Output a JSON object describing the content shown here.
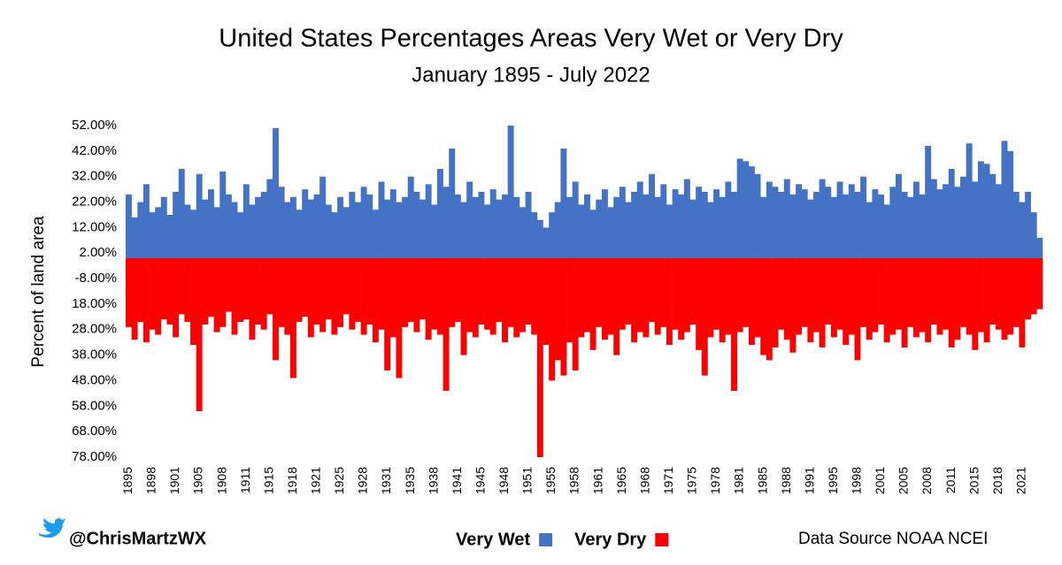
{
  "chart_data": {
    "type": "bar",
    "title": "United States Percentages Areas Very Wet or Very Dry",
    "subtitle": "January 1895 - July 2022",
    "y_axis_label": "Percent of land area",
    "credit": "@ChrisMartzWX",
    "source": "Data Source NOAA NCEI",
    "ylim": [
      -78,
      52
    ],
    "yticks": [
      {
        "value": 52,
        "label": "52.00%"
      },
      {
        "value": 42,
        "label": "42.00%"
      },
      {
        "value": 32,
        "label": "32.00%"
      },
      {
        "value": 22,
        "label": "22.00%"
      },
      {
        "value": 12,
        "label": "12.00%"
      },
      {
        "value": 2,
        "label": "2.00%"
      },
      {
        "value": -8,
        "label": "-8.00%"
      },
      {
        "value": -18,
        "label": "18.00%"
      },
      {
        "value": -28,
        "label": "28.00%"
      },
      {
        "value": -38,
        "label": "38.00%"
      },
      {
        "value": -48,
        "label": "48.00%"
      },
      {
        "value": -58,
        "label": "58.00%"
      },
      {
        "value": -68,
        "label": "68.00%"
      },
      {
        "value": -78,
        "label": "78.00%"
      }
    ],
    "categories": [
      "1895",
      null,
      null,
      null,
      "1898",
      null,
      null,
      null,
      "1901",
      null,
      null,
      null,
      "1905",
      null,
      null,
      null,
      "1908",
      null,
      null,
      null,
      "1911",
      null,
      null,
      null,
      "1915",
      null,
      null,
      null,
      "1918",
      null,
      null,
      null,
      "1921",
      null,
      null,
      null,
      "1925",
      null,
      null,
      null,
      "1928",
      null,
      null,
      null,
      "1931",
      null,
      null,
      null,
      "1935",
      null,
      null,
      null,
      "1938",
      null,
      null,
      null,
      "1941",
      null,
      null,
      null,
      "1945",
      null,
      null,
      null,
      "1948",
      null,
      null,
      null,
      "1951",
      null,
      null,
      null,
      "1955",
      null,
      null,
      null,
      "1958",
      null,
      null,
      null,
      "1961",
      null,
      null,
      null,
      "1965",
      null,
      null,
      null,
      "1968",
      null,
      null,
      null,
      "1971",
      null,
      null,
      null,
      "1975",
      null,
      null,
      null,
      "1978",
      null,
      null,
      null,
      "1981",
      null,
      null,
      null,
      "1985",
      null,
      null,
      null,
      "1988",
      null,
      null,
      null,
      "1991",
      null,
      null,
      null,
      "1995",
      null,
      null,
      null,
      "1998",
      null,
      null,
      null,
      "2001",
      null,
      null,
      null,
      "2005",
      null,
      null,
      null,
      "2008",
      null,
      null,
      null,
      "2011",
      null,
      null,
      null,
      "2015",
      null,
      null,
      null,
      "2018",
      null,
      null,
      null,
      "2021",
      null,
      null,
      null
    ],
    "series": [
      {
        "name": "Very Wet",
        "color": "#4472c4",
        "values": [
          25,
          16,
          22,
          29,
          18,
          20,
          24,
          17,
          26,
          35,
          21,
          19,
          33,
          23,
          27,
          20,
          34,
          25,
          22,
          18,
          29,
          21,
          24,
          26,
          31,
          51,
          28,
          22,
          24,
          19,
          27,
          23,
          25,
          32,
          21,
          18,
          24,
          20,
          26,
          22,
          28,
          25,
          19,
          30,
          23,
          27,
          22,
          24,
          32,
          26,
          23,
          29,
          21,
          35,
          28,
          43,
          25,
          22,
          30,
          24,
          26,
          21,
          27,
          23,
          25,
          52,
          24,
          20,
          26,
          18,
          15,
          12,
          18,
          22,
          43,
          24,
          30,
          21,
          25,
          19,
          23,
          27,
          20,
          24,
          28,
          22,
          26,
          30,
          25,
          33,
          24,
          29,
          21,
          27,
          25,
          31,
          23,
          28,
          26,
          22,
          27,
          24,
          30,
          26,
          39,
          38,
          36,
          33,
          24,
          30,
          28,
          26,
          31,
          25,
          29,
          27,
          23,
          26,
          31,
          28,
          24,
          30,
          25,
          29,
          26,
          32,
          22,
          27,
          25,
          21,
          28,
          33,
          26,
          24,
          30,
          25,
          44,
          31,
          27,
          29,
          35,
          28,
          32,
          45,
          30,
          38,
          37,
          33,
          29,
          46,
          42,
          26,
          22,
          26,
          18,
          8
        ]
      },
      {
        "name": "Very Dry",
        "color": "#ff0000",
        "values": [
          -27,
          -32,
          -25,
          -33,
          -28,
          -30,
          -24,
          -26,
          -31,
          -22,
          -25,
          -34,
          -60,
          -26,
          -23,
          -29,
          -27,
          -21,
          -30,
          -25,
          -24,
          -32,
          -26,
          -28,
          -22,
          -40,
          -27,
          -30,
          -47,
          -25,
          -23,
          -31,
          -26,
          -29,
          -24,
          -30,
          -27,
          -22,
          -28,
          -25,
          -30,
          -26,
          -33,
          -28,
          -44,
          -31,
          -47,
          -27,
          -25,
          -29,
          -24,
          -32,
          -28,
          -30,
          -52,
          -27,
          -25,
          -38,
          -29,
          -31,
          -26,
          -28,
          -30,
          -25,
          -33,
          -27,
          -31,
          -29,
          -26,
          -30,
          -78,
          -34,
          -48,
          -40,
          -46,
          -33,
          -44,
          -31,
          -29,
          -36,
          -27,
          -32,
          -30,
          -38,
          -28,
          -26,
          -33,
          -29,
          -31,
          -25,
          -30,
          -27,
          -34,
          -28,
          -32,
          -29,
          -26,
          -36,
          -46,
          -31,
          -28,
          -33,
          -30,
          -52,
          -29,
          -27,
          -34,
          -31,
          -38,
          -40,
          -35,
          -28,
          -32,
          -37,
          -30,
          -27,
          -33,
          -29,
          -35,
          -26,
          -31,
          -28,
          -34,
          -30,
          -40,
          -27,
          -32,
          -29,
          -26,
          -33,
          -30,
          -28,
          -35,
          -27,
          -31,
          -29,
          -33,
          -26,
          -30,
          -28,
          -35,
          -32,
          -27,
          -30,
          -36,
          -29,
          -33,
          -26,
          -28,
          -32,
          -30,
          -27,
          -35,
          -24,
          -22,
          -20
        ]
      }
    ]
  }
}
